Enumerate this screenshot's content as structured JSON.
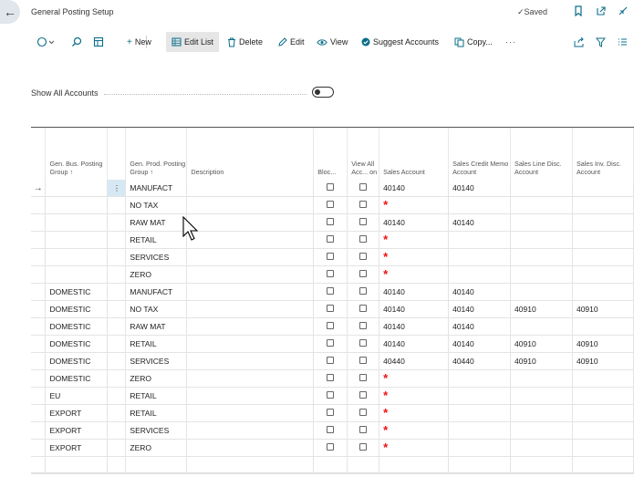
{
  "header": {
    "back_icon": "arrow-left-icon",
    "title": "General Posting Setup",
    "saved_label": "Saved"
  },
  "toolbar": {
    "new_label": "New",
    "edit_list_label": "Edit List",
    "delete_label": "Delete",
    "edit_label": "Edit",
    "view_label": "View",
    "suggest_label": "Suggest Accounts",
    "copy_label": "Copy...",
    "more_label": "···"
  },
  "filter": {
    "show_all_label": "Show All Accounts",
    "show_all_on": false
  },
  "columns": [
    "",
    "Gen. Bus. Posting Group ↑",
    "",
    "Gen. Prod. Posting Group ↑",
    "Description",
    "Bloc...",
    "View All Acc... on",
    "Sales Account",
    "Sales Credit Memo Account",
    "Sales Line Disc. Account",
    "Sales Inv. Disc. Account"
  ],
  "rows": [
    {
      "bus": "",
      "prod": "MANUFACT",
      "desc": "",
      "sales": "40140",
      "credit": "40140",
      "line": "",
      "inv": "",
      "selected": true
    },
    {
      "bus": "",
      "prod": "NO TAX",
      "desc": "",
      "sales": "*",
      "credit": "",
      "line": "",
      "inv": ""
    },
    {
      "bus": "",
      "prod": "RAW MAT",
      "desc": "",
      "sales": "40140",
      "credit": "40140",
      "line": "",
      "inv": ""
    },
    {
      "bus": "",
      "prod": "RETAIL",
      "desc": "",
      "sales": "*",
      "credit": "",
      "line": "",
      "inv": ""
    },
    {
      "bus": "",
      "prod": "SERVICES",
      "desc": "",
      "sales": "*",
      "credit": "",
      "line": "",
      "inv": ""
    },
    {
      "bus": "",
      "prod": "ZERO",
      "desc": "",
      "sales": "*",
      "credit": "",
      "line": "",
      "inv": ""
    },
    {
      "bus": "DOMESTIC",
      "prod": "MANUFACT",
      "desc": "",
      "sales": "40140",
      "credit": "40140",
      "line": "",
      "inv": ""
    },
    {
      "bus": "DOMESTIC",
      "prod": "NO TAX",
      "desc": "",
      "sales": "40140",
      "credit": "40140",
      "line": "40910",
      "inv": "40910"
    },
    {
      "bus": "DOMESTIC",
      "prod": "RAW MAT",
      "desc": "",
      "sales": "40140",
      "credit": "40140",
      "line": "",
      "inv": ""
    },
    {
      "bus": "DOMESTIC",
      "prod": "RETAIL",
      "desc": "",
      "sales": "40140",
      "credit": "40140",
      "line": "40910",
      "inv": "40910"
    },
    {
      "bus": "DOMESTIC",
      "prod": "SERVICES",
      "desc": "",
      "sales": "40440",
      "credit": "40440",
      "line": "40910",
      "inv": "40910"
    },
    {
      "bus": "DOMESTIC",
      "prod": "ZERO",
      "desc": "",
      "sales": "*",
      "credit": "",
      "line": "",
      "inv": ""
    },
    {
      "bus": "EU",
      "prod": "RETAIL",
      "desc": "",
      "sales": "*",
      "credit": "",
      "line": "",
      "inv": ""
    },
    {
      "bus": "EXPORT",
      "prod": "RETAIL",
      "desc": "",
      "sales": "*",
      "credit": "",
      "line": "",
      "inv": ""
    },
    {
      "bus": "EXPORT",
      "prod": "SERVICES",
      "desc": "",
      "sales": "*",
      "credit": "",
      "line": "",
      "inv": ""
    },
    {
      "bus": "EXPORT",
      "prod": "ZERO",
      "desc": "",
      "sales": "*",
      "credit": "",
      "line": "",
      "inv": ""
    },
    {
      "bus": "",
      "prod": "",
      "desc": "",
      "sales": "",
      "credit": "",
      "line": "",
      "inv": ""
    }
  ],
  "colors": {
    "accent": "#0a6e8a",
    "required": "#e11111",
    "selected_menu": "#d6e8f3"
  }
}
